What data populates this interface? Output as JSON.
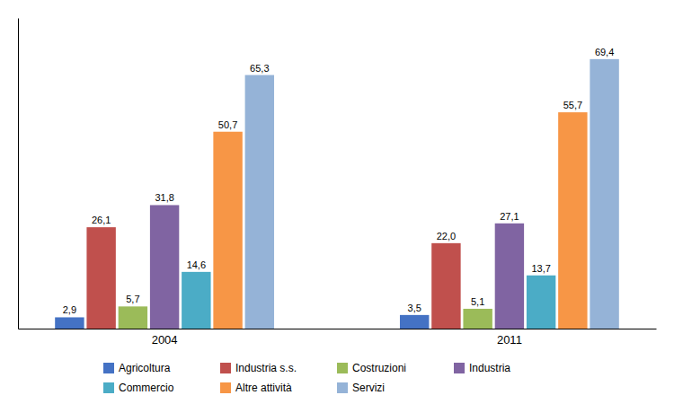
{
  "chart_data": {
    "type": "bar",
    "categories": [
      "2004",
      "2011"
    ],
    "series": [
      {
        "name": "Agricoltura",
        "color": "#4472C4",
        "values": [
          2.9,
          3.5
        ],
        "value_labels": [
          "2,9",
          "3,5"
        ]
      },
      {
        "name": "Industria s.s.",
        "color": "#C0504D",
        "values": [
          26.1,
          22.0
        ],
        "value_labels": [
          "26,1",
          "22,0"
        ]
      },
      {
        "name": "Costruzioni",
        "color": "#9BBB59",
        "values": [
          5.7,
          5.1
        ],
        "value_labels": [
          "5,7",
          "5,1"
        ]
      },
      {
        "name": "Industria",
        "color": "#8064A2",
        "values": [
          31.8,
          27.1
        ],
        "value_labels": [
          "31,8",
          "27,1"
        ]
      },
      {
        "name": "Commercio",
        "color": "#4BACC6",
        "values": [
          14.6,
          13.7
        ],
        "value_labels": [
          "14,6",
          "13,7"
        ]
      },
      {
        "name": "Altre attività",
        "color": "#F79646",
        "values": [
          50.7,
          55.7
        ],
        "value_labels": [
          "50,7",
          "55,7"
        ]
      },
      {
        "name": "Servizi",
        "color": "#95B3D7",
        "values": [
          65.3,
          69.4
        ],
        "value_labels": [
          "65,3",
          "69,4"
        ]
      }
    ],
    "ylim": [
      0,
      80
    ],
    "grid": false,
    "data_labels": true,
    "tick_labels": "x",
    "legend": "bottom"
  }
}
